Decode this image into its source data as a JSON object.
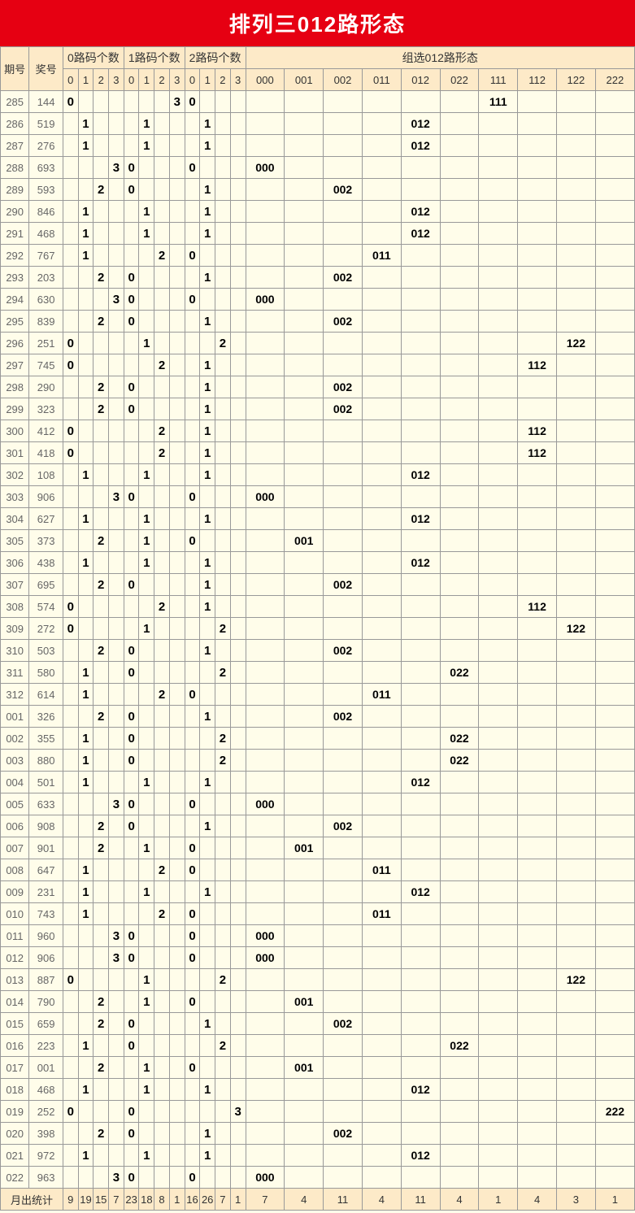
{
  "title": "排列三012路形态",
  "colors": {
    "title_bg": "#e60012",
    "header_bg": "#fdeac8",
    "body_bg": "#fffdea",
    "border": "#999999",
    "bold_text": "#000000",
    "light_text": "#666666"
  },
  "header": {
    "issue": "期号",
    "award": "奖号",
    "group0": "0路码个数",
    "group1": "1路码个数",
    "group2": "2路码个数",
    "group_pattern": "组选012路形态",
    "digits": [
      "0",
      "1",
      "2",
      "3"
    ],
    "patterns": [
      "000",
      "001",
      "002",
      "011",
      "012",
      "022",
      "111",
      "112",
      "122",
      "222"
    ]
  },
  "rows": [
    {
      "issue": "285",
      "award": "144",
      "g0": [
        0,
        null,
        null,
        null
      ],
      "g1": [
        null,
        null,
        null,
        3
      ],
      "g2": [
        0,
        null,
        null,
        null
      ],
      "pat": 6,
      "patv": "111"
    },
    {
      "issue": "286",
      "award": "519",
      "g0": [
        null,
        1,
        null,
        null
      ],
      "g1": [
        null,
        1,
        null,
        null
      ],
      "g2": [
        null,
        1,
        null,
        null
      ],
      "pat": 4,
      "patv": "012"
    },
    {
      "issue": "287",
      "award": "276",
      "g0": [
        null,
        1,
        null,
        null
      ],
      "g1": [
        null,
        1,
        null,
        null
      ],
      "g2": [
        null,
        1,
        null,
        null
      ],
      "pat": 4,
      "patv": "012"
    },
    {
      "issue": "288",
      "award": "693",
      "g0": [
        null,
        null,
        null,
        3
      ],
      "g1": [
        0,
        null,
        null,
        null
      ],
      "g2": [
        0,
        null,
        null,
        null
      ],
      "pat": 0,
      "patv": "000"
    },
    {
      "issue": "289",
      "award": "593",
      "g0": [
        null,
        null,
        2,
        null
      ],
      "g1": [
        0,
        null,
        null,
        null
      ],
      "g2": [
        null,
        1,
        null,
        null
      ],
      "pat": 2,
      "patv": "002"
    },
    {
      "issue": "290",
      "award": "846",
      "g0": [
        null,
        1,
        null,
        null
      ],
      "g1": [
        null,
        1,
        null,
        null
      ],
      "g2": [
        null,
        1,
        null,
        null
      ],
      "pat": 4,
      "patv": "012"
    },
    {
      "issue": "291",
      "award": "468",
      "g0": [
        null,
        1,
        null,
        null
      ],
      "g1": [
        null,
        1,
        null,
        null
      ],
      "g2": [
        null,
        1,
        null,
        null
      ],
      "pat": 4,
      "patv": "012"
    },
    {
      "issue": "292",
      "award": "767",
      "g0": [
        null,
        1,
        null,
        null
      ],
      "g1": [
        null,
        null,
        2,
        null
      ],
      "g2": [
        0,
        null,
        null,
        null
      ],
      "pat": 3,
      "patv": "011"
    },
    {
      "issue": "293",
      "award": "203",
      "g0": [
        null,
        null,
        2,
        null
      ],
      "g1": [
        0,
        null,
        null,
        null
      ],
      "g2": [
        null,
        1,
        null,
        null
      ],
      "pat": 2,
      "patv": "002"
    },
    {
      "issue": "294",
      "award": "630",
      "g0": [
        null,
        null,
        null,
        3
      ],
      "g1": [
        0,
        null,
        null,
        null
      ],
      "g2": [
        0,
        null,
        null,
        null
      ],
      "pat": 0,
      "patv": "000"
    },
    {
      "issue": "295",
      "award": "839",
      "g0": [
        null,
        null,
        2,
        null
      ],
      "g1": [
        0,
        null,
        null,
        null
      ],
      "g2": [
        null,
        1,
        null,
        null
      ],
      "pat": 2,
      "patv": "002"
    },
    {
      "issue": "296",
      "award": "251",
      "g0": [
        0,
        null,
        null,
        null
      ],
      "g1": [
        null,
        1,
        null,
        null
      ],
      "g2": [
        null,
        null,
        2,
        null
      ],
      "pat": 8,
      "patv": "122"
    },
    {
      "issue": "297",
      "award": "745",
      "g0": [
        0,
        null,
        null,
        null
      ],
      "g1": [
        null,
        null,
        2,
        null
      ],
      "g2": [
        null,
        1,
        null,
        null
      ],
      "pat": 7,
      "patv": "112"
    },
    {
      "issue": "298",
      "award": "290",
      "g0": [
        null,
        null,
        2,
        null
      ],
      "g1": [
        0,
        null,
        null,
        null
      ],
      "g2": [
        null,
        1,
        null,
        null
      ],
      "pat": 2,
      "patv": "002"
    },
    {
      "issue": "299",
      "award": "323",
      "g0": [
        null,
        null,
        2,
        null
      ],
      "g1": [
        0,
        null,
        null,
        null
      ],
      "g2": [
        null,
        1,
        null,
        null
      ],
      "pat": 2,
      "patv": "002"
    },
    {
      "issue": "300",
      "award": "412",
      "g0": [
        0,
        null,
        null,
        null
      ],
      "g1": [
        null,
        null,
        2,
        null
      ],
      "g2": [
        null,
        1,
        null,
        null
      ],
      "pat": 7,
      "patv": "112"
    },
    {
      "issue": "301",
      "award": "418",
      "g0": [
        0,
        null,
        null,
        null
      ],
      "g1": [
        null,
        null,
        2,
        null
      ],
      "g2": [
        null,
        1,
        null,
        null
      ],
      "pat": 7,
      "patv": "112"
    },
    {
      "issue": "302",
      "award": "108",
      "g0": [
        null,
        1,
        null,
        null
      ],
      "g1": [
        null,
        1,
        null,
        null
      ],
      "g2": [
        null,
        1,
        null,
        null
      ],
      "pat": 4,
      "patv": "012"
    },
    {
      "issue": "303",
      "award": "906",
      "g0": [
        null,
        null,
        null,
        3
      ],
      "g1": [
        0,
        null,
        null,
        null
      ],
      "g2": [
        0,
        null,
        null,
        null
      ],
      "pat": 0,
      "patv": "000"
    },
    {
      "issue": "304",
      "award": "627",
      "g0": [
        null,
        1,
        null,
        null
      ],
      "g1": [
        null,
        1,
        null,
        null
      ],
      "g2": [
        null,
        1,
        null,
        null
      ],
      "pat": 4,
      "patv": "012"
    },
    {
      "issue": "305",
      "award": "373",
      "g0": [
        null,
        null,
        2,
        null
      ],
      "g1": [
        null,
        1,
        null,
        null
      ],
      "g2": [
        0,
        null,
        null,
        null
      ],
      "pat": 1,
      "patv": "001"
    },
    {
      "issue": "306",
      "award": "438",
      "g0": [
        null,
        1,
        null,
        null
      ],
      "g1": [
        null,
        1,
        null,
        null
      ],
      "g2": [
        null,
        1,
        null,
        null
      ],
      "pat": 4,
      "patv": "012"
    },
    {
      "issue": "307",
      "award": "695",
      "g0": [
        null,
        null,
        2,
        null
      ],
      "g1": [
        0,
        null,
        null,
        null
      ],
      "g2": [
        null,
        1,
        null,
        null
      ],
      "pat": 2,
      "patv": "002"
    },
    {
      "issue": "308",
      "award": "574",
      "g0": [
        0,
        null,
        null,
        null
      ],
      "g1": [
        null,
        null,
        2,
        null
      ],
      "g2": [
        null,
        1,
        null,
        null
      ],
      "pat": 7,
      "patv": "112"
    },
    {
      "issue": "309",
      "award": "272",
      "g0": [
        0,
        null,
        null,
        null
      ],
      "g1": [
        null,
        1,
        null,
        null
      ],
      "g2": [
        null,
        null,
        2,
        null
      ],
      "pat": 8,
      "patv": "122"
    },
    {
      "issue": "310",
      "award": "503",
      "g0": [
        null,
        null,
        2,
        null
      ],
      "g1": [
        0,
        null,
        null,
        null
      ],
      "g2": [
        null,
        1,
        null,
        null
      ],
      "pat": 2,
      "patv": "002"
    },
    {
      "issue": "311",
      "award": "580",
      "g0": [
        null,
        1,
        null,
        null
      ],
      "g1": [
        0,
        null,
        null,
        null
      ],
      "g2": [
        null,
        null,
        2,
        null
      ],
      "pat": 5,
      "patv": "022"
    },
    {
      "issue": "312",
      "award": "614",
      "g0": [
        null,
        1,
        null,
        null
      ],
      "g1": [
        null,
        null,
        2,
        null
      ],
      "g2": [
        0,
        null,
        null,
        null
      ],
      "pat": 3,
      "patv": "011"
    },
    {
      "issue": "001",
      "award": "326",
      "g0": [
        null,
        null,
        2,
        null
      ],
      "g1": [
        0,
        null,
        null,
        null
      ],
      "g2": [
        null,
        1,
        null,
        null
      ],
      "pat": 2,
      "patv": "002"
    },
    {
      "issue": "002",
      "award": "355",
      "g0": [
        null,
        1,
        null,
        null
      ],
      "g1": [
        0,
        null,
        null,
        null
      ],
      "g2": [
        null,
        null,
        2,
        null
      ],
      "pat": 5,
      "patv": "022"
    },
    {
      "issue": "003",
      "award": "880",
      "g0": [
        null,
        1,
        null,
        null
      ],
      "g1": [
        0,
        null,
        null,
        null
      ],
      "g2": [
        null,
        null,
        2,
        null
      ],
      "pat": 5,
      "patv": "022"
    },
    {
      "issue": "004",
      "award": "501",
      "g0": [
        null,
        1,
        null,
        null
      ],
      "g1": [
        null,
        1,
        null,
        null
      ],
      "g2": [
        null,
        1,
        null,
        null
      ],
      "pat": 4,
      "patv": "012"
    },
    {
      "issue": "005",
      "award": "633",
      "g0": [
        null,
        null,
        null,
        3
      ],
      "g1": [
        0,
        null,
        null,
        null
      ],
      "g2": [
        0,
        null,
        null,
        null
      ],
      "pat": 0,
      "patv": "000"
    },
    {
      "issue": "006",
      "award": "908",
      "g0": [
        null,
        null,
        2,
        null
      ],
      "g1": [
        0,
        null,
        null,
        null
      ],
      "g2": [
        null,
        1,
        null,
        null
      ],
      "pat": 2,
      "patv": "002"
    },
    {
      "issue": "007",
      "award": "901",
      "g0": [
        null,
        null,
        2,
        null
      ],
      "g1": [
        null,
        1,
        null,
        null
      ],
      "g2": [
        0,
        null,
        null,
        null
      ],
      "pat": 1,
      "patv": "001"
    },
    {
      "issue": "008",
      "award": "647",
      "g0": [
        null,
        1,
        null,
        null
      ],
      "g1": [
        null,
        null,
        2,
        null
      ],
      "g2": [
        0,
        null,
        null,
        null
      ],
      "pat": 3,
      "patv": "011"
    },
    {
      "issue": "009",
      "award": "231",
      "g0": [
        null,
        1,
        null,
        null
      ],
      "g1": [
        null,
        1,
        null,
        null
      ],
      "g2": [
        null,
        1,
        null,
        null
      ],
      "pat": 4,
      "patv": "012"
    },
    {
      "issue": "010",
      "award": "743",
      "g0": [
        null,
        1,
        null,
        null
      ],
      "g1": [
        null,
        null,
        2,
        null
      ],
      "g2": [
        0,
        null,
        null,
        null
      ],
      "pat": 3,
      "patv": "011"
    },
    {
      "issue": "011",
      "award": "960",
      "g0": [
        null,
        null,
        null,
        3
      ],
      "g1": [
        0,
        null,
        null,
        null
      ],
      "g2": [
        0,
        null,
        null,
        null
      ],
      "pat": 0,
      "patv": "000"
    },
    {
      "issue": "012",
      "award": "906",
      "g0": [
        null,
        null,
        null,
        3
      ],
      "g1": [
        0,
        null,
        null,
        null
      ],
      "g2": [
        0,
        null,
        null,
        null
      ],
      "pat": 0,
      "patv": "000"
    },
    {
      "issue": "013",
      "award": "887",
      "g0": [
        0,
        null,
        null,
        null
      ],
      "g1": [
        null,
        1,
        null,
        null
      ],
      "g2": [
        null,
        null,
        2,
        null
      ],
      "pat": 8,
      "patv": "122"
    },
    {
      "issue": "014",
      "award": "790",
      "g0": [
        null,
        null,
        2,
        null
      ],
      "g1": [
        null,
        1,
        null,
        null
      ],
      "g2": [
        0,
        null,
        null,
        null
      ],
      "pat": 1,
      "patv": "001"
    },
    {
      "issue": "015",
      "award": "659",
      "g0": [
        null,
        null,
        2,
        null
      ],
      "g1": [
        0,
        null,
        null,
        null
      ],
      "g2": [
        null,
        1,
        null,
        null
      ],
      "pat": 2,
      "patv": "002"
    },
    {
      "issue": "016",
      "award": "223",
      "g0": [
        null,
        1,
        null,
        null
      ],
      "g1": [
        0,
        null,
        null,
        null
      ],
      "g2": [
        null,
        null,
        2,
        null
      ],
      "pat": 5,
      "patv": "022"
    },
    {
      "issue": "017",
      "award": "001",
      "g0": [
        null,
        null,
        2,
        null
      ],
      "g1": [
        null,
        1,
        null,
        null
      ],
      "g2": [
        0,
        null,
        null,
        null
      ],
      "pat": 1,
      "patv": "001"
    },
    {
      "issue": "018",
      "award": "468",
      "g0": [
        null,
        1,
        null,
        null
      ],
      "g1": [
        null,
        1,
        null,
        null
      ],
      "g2": [
        null,
        1,
        null,
        null
      ],
      "pat": 4,
      "patv": "012"
    },
    {
      "issue": "019",
      "award": "252",
      "g0": [
        0,
        null,
        null,
        null
      ],
      "g1": [
        0,
        null,
        null,
        null
      ],
      "g2": [
        null,
        null,
        null,
        3
      ],
      "pat": 9,
      "patv": "222"
    },
    {
      "issue": "020",
      "award": "398",
      "g0": [
        null,
        null,
        2,
        null
      ],
      "g1": [
        0,
        null,
        null,
        null
      ],
      "g2": [
        null,
        1,
        null,
        null
      ],
      "pat": 2,
      "patv": "002"
    },
    {
      "issue": "021",
      "award": "972",
      "g0": [
        null,
        1,
        null,
        null
      ],
      "g1": [
        null,
        1,
        null,
        null
      ],
      "g2": [
        null,
        1,
        null,
        null
      ],
      "pat": 4,
      "patv": "012"
    },
    {
      "issue": "022",
      "award": "963",
      "g0": [
        null,
        null,
        null,
        3
      ],
      "g1": [
        0,
        null,
        null,
        null
      ],
      "g2": [
        0,
        null,
        null,
        null
      ],
      "pat": 0,
      "patv": "000"
    }
  ],
  "summary": {
    "label": "月出统计",
    "g0": [
      "9",
      "19",
      "15",
      "7"
    ],
    "g1": [
      "23",
      "18",
      "8",
      "1"
    ],
    "g2": [
      "16",
      "26",
      "7",
      "1"
    ],
    "patterns": [
      "7",
      "4",
      "11",
      "4",
      "11",
      "4",
      "1",
      "4",
      "3",
      "1"
    ]
  }
}
